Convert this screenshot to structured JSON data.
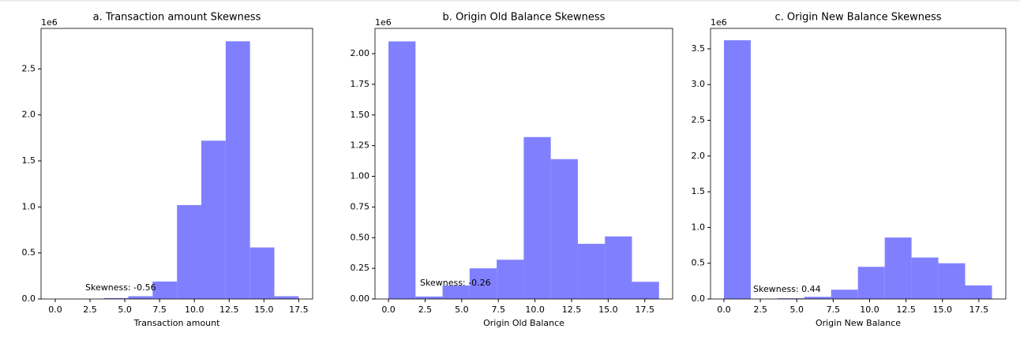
{
  "chart_data": [
    {
      "type": "histogram",
      "title": "a. Transaction amount Skewness",
      "xlabel": "Transaction amount",
      "offset_label": "1e6",
      "annotation": "Skewness: -0.56",
      "color": "#8080ff",
      "bins": [
        0,
        1.75,
        3.5,
        5.25,
        7,
        8.75,
        10.5,
        12.25,
        14,
        15.75,
        17.5
      ],
      "values": [
        0,
        0,
        0.01,
        0.03,
        0.19,
        1.02,
        1.72,
        2.8,
        0.56,
        0.03
      ],
      "xlim": [
        -1.02,
        18.5
      ],
      "ylim": [
        0,
        2.94
      ],
      "xticks": [
        {
          "value": 0,
          "label": "0.0"
        },
        2.5,
        {
          "value": 5,
          "label": "5.0"
        },
        7.5,
        {
          "value": 10,
          "label": "10.0"
        },
        12.5,
        {
          "value": 15,
          "label": "15.0"
        },
        17.5
      ],
      "yticks": [
        {
          "value": 0,
          "label": "0.0"
        },
        0.5,
        {
          "value": 1,
          "label": "1.0"
        },
        1.5,
        {
          "value": 2,
          "label": "2.0"
        },
        2.5
      ]
    },
    {
      "type": "histogram",
      "title": "b. Origin Old Balance Skewness",
      "xlabel": "Origin Old Balance",
      "offset_label": "1e6",
      "annotation": "Skewness: -0.26",
      "color": "#8080ff",
      "bins": [
        0,
        1.847,
        3.694,
        5.541,
        7.388,
        9.235,
        11.082,
        12.929,
        14.776,
        16.623,
        18.47
      ],
      "values": [
        2.1,
        0.02,
        0.11,
        0.25,
        0.32,
        1.32,
        1.14,
        0.45,
        0.51,
        0.14
      ],
      "xlim": [
        -0.92,
        19.4
      ],
      "ylim": [
        0,
        2.206
      ],
      "xticks": [
        {
          "value": 0,
          "label": "0.0"
        },
        2.5,
        {
          "value": 5,
          "label": "5.0"
        },
        7.5,
        {
          "value": 10,
          "label": "10.0"
        },
        12.5,
        {
          "value": 15,
          "label": "15.0"
        },
        17.5
      ],
      "yticks": [
        {
          "value": 0,
          "label": "0.00"
        },
        0.25,
        {
          "value": 0.5,
          "label": "0.50"
        },
        0.75,
        {
          "value": 1,
          "label": "1.00"
        },
        1.25,
        {
          "value": 1.5,
          "label": "1.50"
        },
        1.75,
        {
          "value": 2,
          "label": "2.00"
        }
      ]
    },
    {
      "type": "histogram",
      "title": "c. Origin New Balance Skewness",
      "xlabel": "Origin New Balance",
      "offset_label": "1e6",
      "annotation": "Skewness: 0.44",
      "color": "#8080ff",
      "bins": [
        0,
        1.84,
        3.68,
        5.52,
        7.36,
        9.2,
        11.04,
        12.88,
        14.72,
        16.56,
        18.4
      ],
      "values": [
        3.62,
        0,
        0.01,
        0.03,
        0.13,
        0.45,
        0.86,
        0.58,
        0.5,
        0.19
      ],
      "xlim": [
        -0.92,
        19.35
      ],
      "ylim": [
        0,
        3.786
      ],
      "xticks": [
        {
          "value": 0,
          "label": "0.0"
        },
        2.5,
        {
          "value": 5,
          "label": "5.0"
        },
        7.5,
        {
          "value": 10,
          "label": "10.0"
        },
        12.5,
        {
          "value": 15,
          "label": "15.0"
        },
        17.5
      ],
      "yticks": [
        {
          "value": 0,
          "label": "0.0"
        },
        0.5,
        {
          "value": 1,
          "label": "1.0"
        },
        1.5,
        {
          "value": 2,
          "label": "2.0"
        },
        2.5,
        {
          "value": 3,
          "label": "3.0"
        },
        3.5
      ]
    }
  ]
}
